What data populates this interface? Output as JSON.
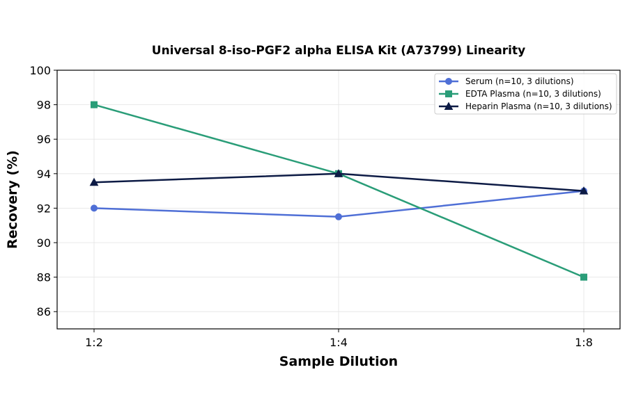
{
  "chart_data": {
    "type": "line",
    "title": "Universal 8-iso-PGF2 alpha ELISA Kit (A73799) Linearity",
    "xlabel": "Sample Dilution",
    "ylabel": "Recovery (%)",
    "categories": [
      "1:2",
      "1:4",
      "1:8"
    ],
    "ylim": [
      85,
      100
    ],
    "yticks": [
      86,
      88,
      90,
      92,
      94,
      96,
      98,
      100
    ],
    "grid": true,
    "legend_position": "top-right",
    "series": [
      {
        "name": "Serum (n=10, 3 dilutions)",
        "values": [
          92,
          91.5,
          93
        ],
        "color": "#4f6fd6",
        "marker": "circle"
      },
      {
        "name": "EDTA Plasma (n=10, 3 dilutions)",
        "values": [
          98,
          94,
          88
        ],
        "color": "#2a9d78",
        "marker": "square"
      },
      {
        "name": "Heparin Plasma (n=10, 3 dilutions)",
        "values": [
          93.5,
          94,
          93
        ],
        "color": "#0d1b45",
        "marker": "triangle"
      }
    ]
  }
}
